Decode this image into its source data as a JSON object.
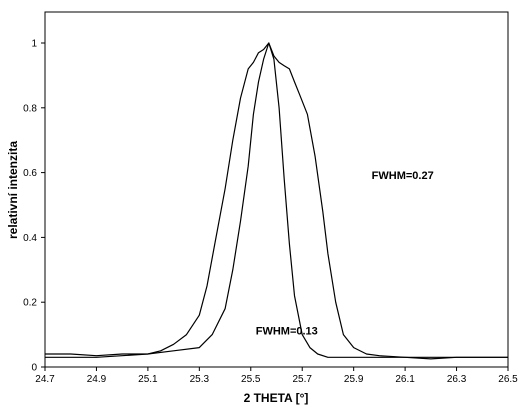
{
  "chart_data": {
    "type": "line",
    "xlabel": "2 THETA [°]",
    "ylabel": "relativní intenzita",
    "xlim": [
      24.7,
      26.5
    ],
    "ylim": [
      0,
      1.0
    ],
    "xticks": [
      "24.7",
      "24.9",
      "25.1",
      "25.3",
      "25.5",
      "25.7",
      "25.9",
      "26.1",
      "26.3",
      "26.5"
    ],
    "yticks": [
      "0",
      "0.2",
      "0.4",
      "0.6",
      "0.8",
      "1"
    ],
    "grid": false,
    "annotations": [
      {
        "text": "FWHM=0.27",
        "x": 25.97,
        "y": 0.58
      },
      {
        "text": "FWHM=0.13",
        "x": 25.64,
        "y": 0.1
      }
    ],
    "series": [
      {
        "x": [
          24.7,
          24.8,
          24.9,
          25.0,
          25.1,
          25.15,
          25.2,
          25.25,
          25.3,
          25.33,
          25.36,
          25.4,
          25.43,
          25.46,
          25.49,
          25.51,
          25.53,
          25.55,
          25.57,
          25.59,
          25.61,
          25.63,
          25.65,
          25.67,
          25.69,
          25.72,
          25.75,
          25.78,
          25.8,
          25.83,
          25.86,
          25.9,
          25.95,
          26.0,
          26.1,
          26.2,
          26.3,
          26.4,
          26.5
        ],
        "y": [
          0.04,
          0.04,
          0.035,
          0.04,
          0.04,
          0.05,
          0.07,
          0.1,
          0.16,
          0.25,
          0.38,
          0.55,
          0.7,
          0.83,
          0.92,
          0.94,
          0.97,
          0.98,
          1.0,
          0.96,
          0.94,
          0.93,
          0.92,
          0.88,
          0.84,
          0.78,
          0.65,
          0.48,
          0.35,
          0.2,
          0.1,
          0.06,
          0.04,
          0.035,
          0.03,
          0.03,
          0.03,
          0.03,
          0.03
        ]
      },
      {
        "x": [
          24.7,
          24.8,
          24.9,
          25.0,
          25.1,
          25.2,
          25.3,
          25.35,
          25.4,
          25.43,
          25.46,
          25.49,
          25.51,
          25.53,
          25.55,
          25.57,
          25.59,
          25.61,
          25.63,
          25.65,
          25.67,
          25.7,
          25.73,
          25.76,
          25.8,
          25.9,
          26.0,
          26.1,
          26.2,
          26.3,
          26.4,
          26.5
        ],
        "y": [
          0.03,
          0.03,
          0.03,
          0.035,
          0.04,
          0.05,
          0.06,
          0.1,
          0.18,
          0.3,
          0.45,
          0.62,
          0.78,
          0.88,
          0.95,
          1.0,
          0.95,
          0.8,
          0.58,
          0.38,
          0.22,
          0.1,
          0.06,
          0.04,
          0.03,
          0.03,
          0.03,
          0.03,
          0.025,
          0.03,
          0.03,
          0.03
        ]
      }
    ]
  }
}
